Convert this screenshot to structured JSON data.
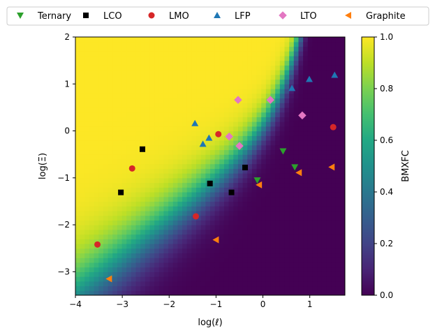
{
  "chart_data": {
    "type": "scatter",
    "background": "heatmap",
    "xlabel": "log(ℓ)",
    "ylabel": "log(Ξ)",
    "xlim": [
      -4,
      1.75
    ],
    "ylim": [
      -3.5,
      2
    ],
    "x_ticks": [
      -4,
      -3,
      -2,
      -1,
      0,
      1
    ],
    "y_ticks": [
      -3,
      -2,
      -1,
      0,
      1,
      2
    ],
    "grid": false,
    "legend_position": "top",
    "colorbar": {
      "label": "BMXFC",
      "colormap": "viridis",
      "range": [
        0,
        1
      ],
      "ticks": [
        0.0,
        0.2,
        0.4,
        0.6,
        0.8,
        1.0
      ],
      "tick_labels": [
        "0.0",
        "0.2",
        "0.4",
        "0.6",
        "0.8",
        "1.0"
      ]
    },
    "series": [
      {
        "name": "Ternary",
        "marker": "triangle-down",
        "color": "#2ca02c",
        "points": [
          [
            0.43,
            -0.43
          ],
          [
            0.68,
            -0.77
          ],
          [
            -0.12,
            -1.05
          ]
        ]
      },
      {
        "name": "LCO",
        "marker": "square",
        "color": "#000000",
        "points": [
          [
            -3.03,
            -1.31
          ],
          [
            -2.57,
            -0.39
          ],
          [
            -1.13,
            -1.12
          ],
          [
            -0.67,
            -1.31
          ],
          [
            -0.38,
            -0.78
          ]
        ]
      },
      {
        "name": "LMO",
        "marker": "circle",
        "color": "#d62728",
        "points": [
          [
            -3.53,
            -2.42
          ],
          [
            -2.79,
            -0.8
          ],
          [
            -1.43,
            -1.82
          ],
          [
            -0.95,
            -0.07
          ],
          [
            1.5,
            0.08
          ]
        ]
      },
      {
        "name": "LFP",
        "marker": "triangle-up",
        "color": "#1f77b4",
        "points": [
          [
            -1.45,
            0.16
          ],
          [
            -1.28,
            -0.28
          ],
          [
            -1.15,
            -0.15
          ],
          [
            0.62,
            0.91
          ],
          [
            0.99,
            1.1
          ],
          [
            1.53,
            1.19
          ]
        ]
      },
      {
        "name": "LTO",
        "marker": "diamond",
        "color": "#e377c2",
        "points": [
          [
            -0.53,
            0.66
          ],
          [
            -0.72,
            -0.12
          ],
          [
            -0.5,
            -0.32
          ],
          [
            0.16,
            0.66
          ],
          [
            0.84,
            0.33
          ]
        ]
      },
      {
        "name": "Graphite",
        "marker": "triangle-left",
        "color": "#ff7f0e",
        "points": [
          [
            -3.28,
            -3.15
          ],
          [
            -1.0,
            -2.32
          ],
          [
            -0.08,
            -1.15
          ],
          [
            0.77,
            -0.89
          ],
          [
            1.47,
            -0.77
          ]
        ]
      }
    ]
  }
}
